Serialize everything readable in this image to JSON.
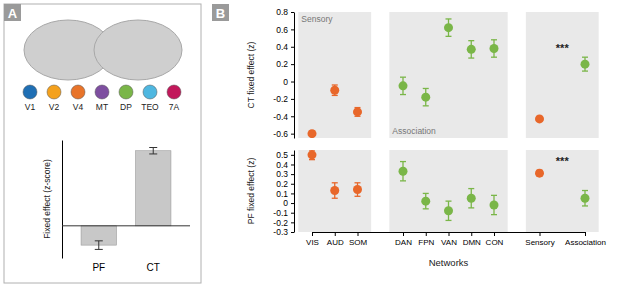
{
  "chart_data": [
    {
      "panel": "A",
      "type": "bar",
      "categories": [
        "PF",
        "CT"
      ],
      "values": [
        -0.09,
        0.35
      ],
      "errors": [
        0.02,
        0.015
      ],
      "color": "#c8c8c8",
      "ylabel": "Fixed effect (z-score)",
      "ylim": [
        -0.15,
        0.4
      ],
      "yticks": [],
      "tick_labels": "x",
      "regions": [
        {
          "name": "V1",
          "color": "#1f6fb4"
        },
        {
          "name": "V2",
          "color": "#f4a11d"
        },
        {
          "name": "V4",
          "color": "#e8742a"
        },
        {
          "name": "MT",
          "color": "#7e4fa0"
        },
        {
          "name": "DP",
          "color": "#7ab648"
        },
        {
          "name": "TEO",
          "color": "#4fb7e0"
        },
        {
          "name": "7A",
          "color": "#c2185b"
        }
      ]
    },
    {
      "panel": "B",
      "type": "scatter",
      "categories": [
        "VIS",
        "AUD",
        "SOM",
        null,
        "DAN",
        "FPN",
        "VAN",
        "DMN",
        "CON",
        null,
        "Sensory",
        null,
        "Association"
      ],
      "values": [
        -0.6,
        -0.1,
        -0.35,
        null,
        -0.05,
        -0.18,
        0.62,
        0.37,
        0.38,
        null,
        -0.43,
        null,
        0.2
      ],
      "errors": [
        0.03,
        0.06,
        0.05,
        null,
        0.1,
        0.1,
        0.1,
        0.1,
        0.1,
        null,
        0.02,
        null,
        0.08
      ],
      "colors": [
        "#e8672a",
        "#e8672a",
        "#e8672a",
        null,
        "#7ab648",
        "#7ab648",
        "#7ab648",
        "#7ab648",
        "#7ab648",
        null,
        "#e8672a",
        null,
        "#7ab648"
      ],
      "ylabel": "CT fixed effect (z)",
      "ylim": [
        -0.65,
        0.8
      ],
      "yticks": [
        -0.6,
        -0.4,
        -0.2,
        0,
        0.2,
        0.4,
        0.6,
        0.8
      ],
      "tick_labels": "y",
      "groups": [
        {
          "label": "Sensory",
          "members": [
            "VIS",
            "AUD",
            "SOM"
          ]
        },
        {
          "label": "Association",
          "members": [
            "DAN",
            "FPN",
            "VAN",
            "DMN",
            "CON"
          ]
        },
        {
          "members": [
            "Sensory",
            "Association"
          ]
        }
      ],
      "annotations": [
        {
          "text": "***",
          "between": [
            "Sensory",
            "Association"
          ]
        }
      ]
    },
    {
      "type": "scatter",
      "categories": [
        "VIS",
        "AUD",
        "SOM",
        null,
        "DAN",
        "FPN",
        "VAN",
        "DMN",
        "CON",
        null,
        "Sensory",
        null,
        "Association"
      ],
      "values": [
        0.5,
        0.13,
        0.14,
        null,
        0.33,
        0.02,
        -0.08,
        0.05,
        -0.02,
        null,
        0.31,
        null,
        0.05
      ],
      "errors": [
        0.05,
        0.08,
        0.07,
        null,
        0.1,
        0.08,
        0.1,
        0.1,
        0.1,
        null,
        0.03,
        null,
        0.08
      ],
      "colors": [
        "#e8672a",
        "#e8672a",
        "#e8672a",
        null,
        "#7ab648",
        "#7ab648",
        "#7ab648",
        "#7ab648",
        "#7ab648",
        null,
        "#e8672a",
        null,
        "#7ab648"
      ],
      "ylabel": "PF fixed effect (z)",
      "xlabel": "Networks",
      "ylim": [
        -0.3,
        0.55
      ],
      "yticks": [
        -0.3,
        -0.2,
        -0.1,
        0,
        0.1,
        0.2,
        0.3,
        0.4,
        0.5
      ],
      "groups": [
        {
          "members": [
            "VIS",
            "AUD",
            "SOM"
          ]
        },
        {
          "members": [
            "DAN",
            "FPN",
            "VAN",
            "DMN",
            "CON"
          ]
        },
        {
          "members": [
            "Sensory",
            "Association"
          ]
        }
      ],
      "annotations": [
        {
          "text": "***",
          "between": [
            "Sensory",
            "Association"
          ]
        }
      ]
    }
  ]
}
